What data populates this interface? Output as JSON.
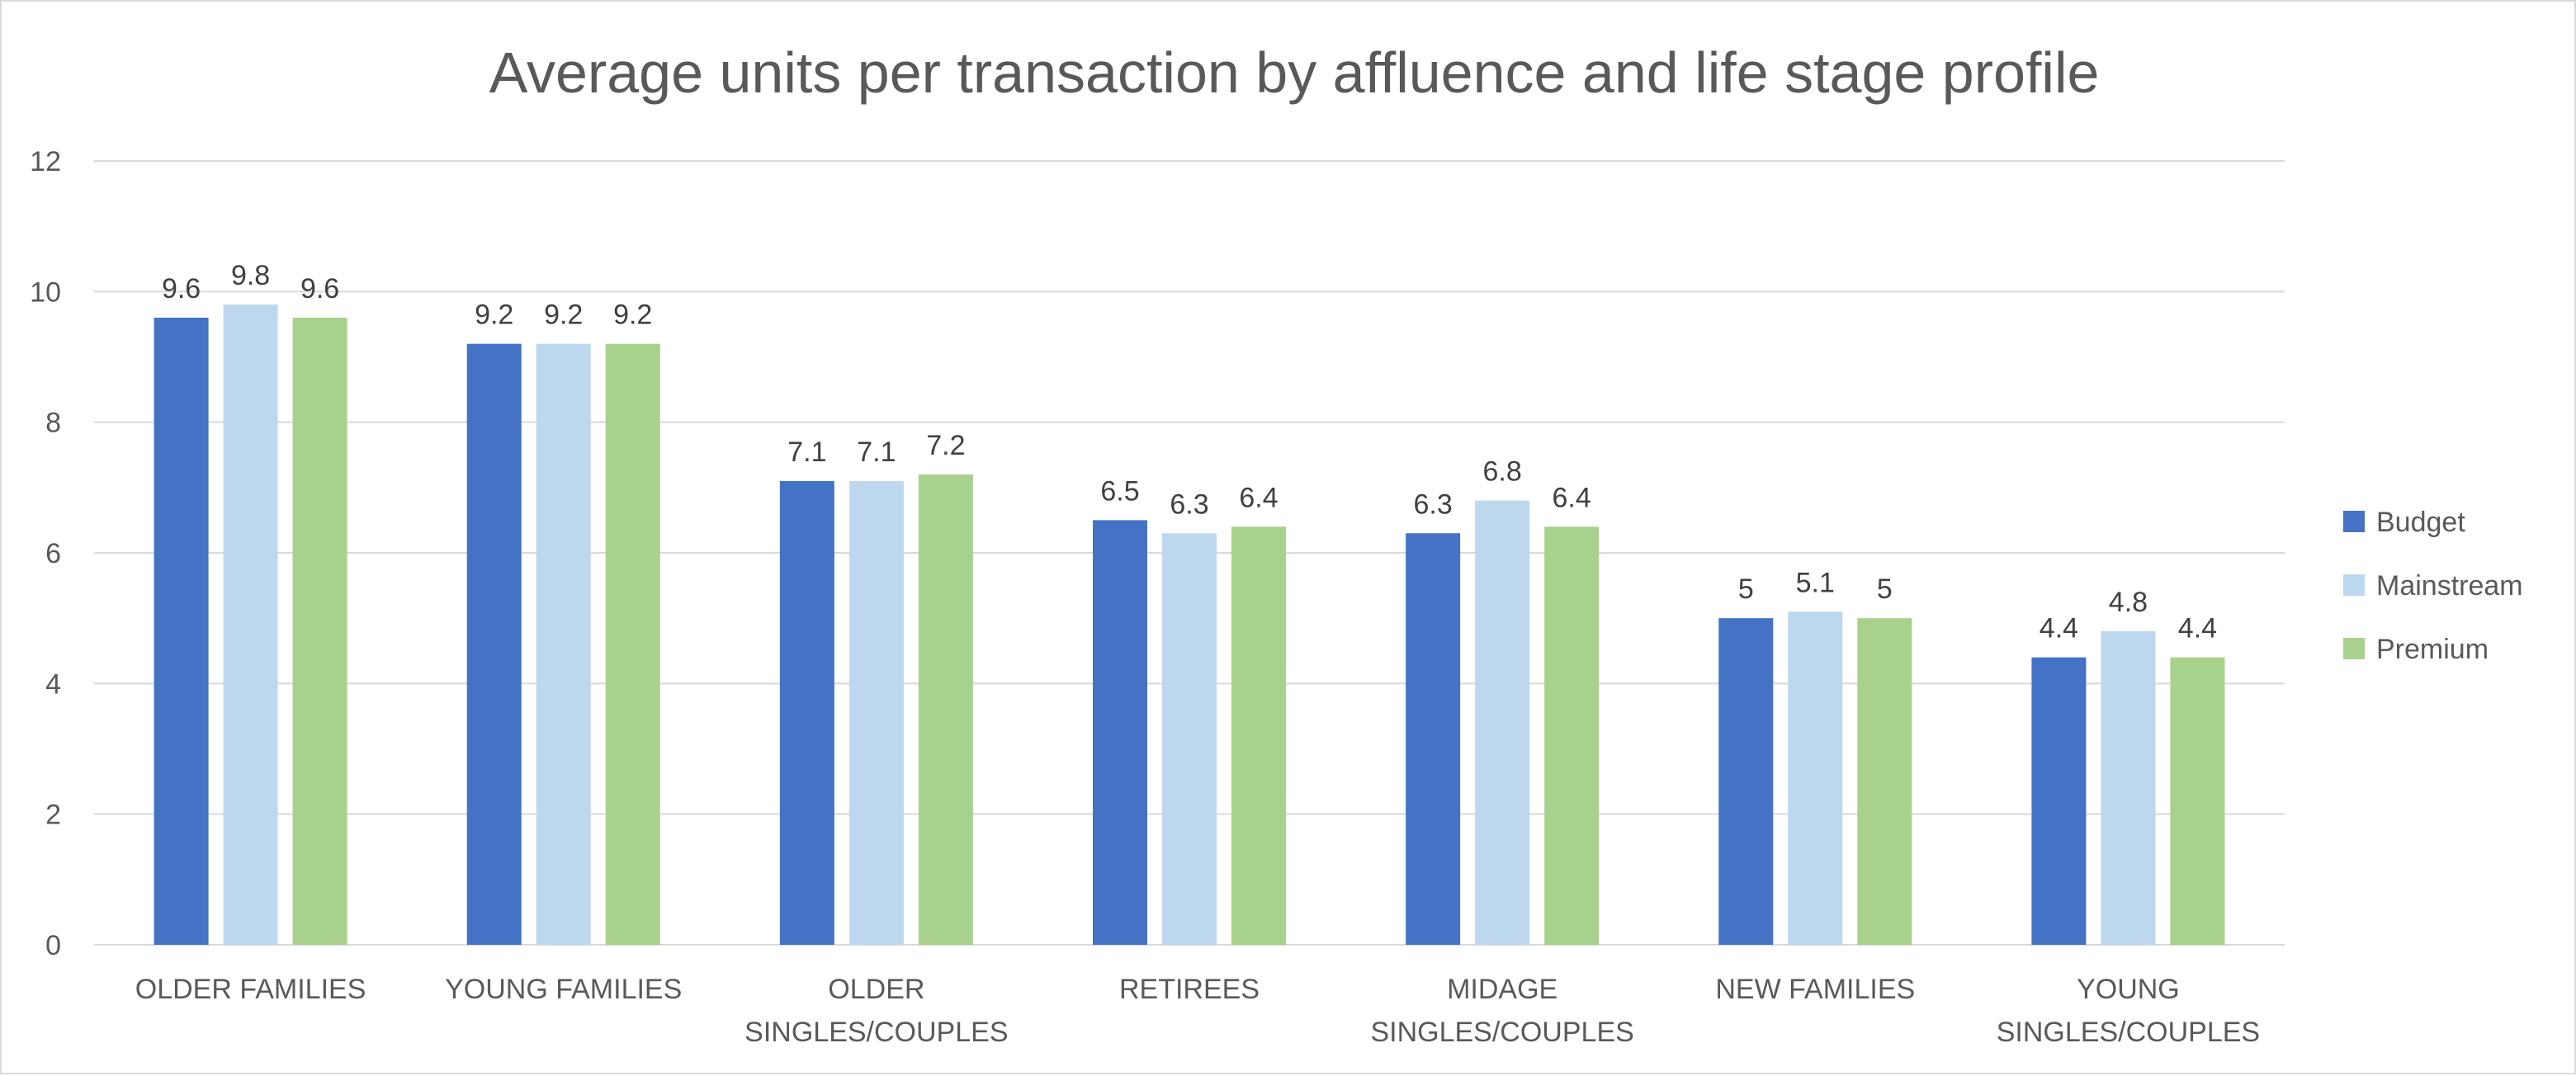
{
  "chart_data": {
    "type": "bar",
    "title": "Average units per transaction by affluence and life stage profile",
    "xlabel": "",
    "ylabel": "",
    "ylim": [
      0,
      12
    ],
    "yticks": [
      0,
      2,
      4,
      6,
      8,
      10,
      12
    ],
    "grid": true,
    "legend_position": "right",
    "categories": [
      [
        "OLDER FAMILIES"
      ],
      [
        "YOUNG FAMILIES"
      ],
      [
        "OLDER",
        "SINGLES/COUPLES"
      ],
      [
        "RETIREES"
      ],
      [
        "MIDAGE",
        "SINGLES/COUPLES"
      ],
      [
        "NEW FAMILIES"
      ],
      [
        "YOUNG",
        "SINGLES/COUPLES"
      ]
    ],
    "series": [
      {
        "name": "Budget",
        "color": "#4472c4",
        "values": [
          9.6,
          9.2,
          7.1,
          6.5,
          6.3,
          5,
          4.4
        ]
      },
      {
        "name": "Mainstream",
        "color": "#bdd7ee",
        "values": [
          9.8,
          9.2,
          7.1,
          6.3,
          6.8,
          5.1,
          4.8
        ]
      },
      {
        "name": "Premium",
        "color": "#a9d18e",
        "values": [
          9.6,
          9.2,
          7.2,
          6.4,
          6.4,
          5,
          4.4
        ]
      }
    ]
  }
}
